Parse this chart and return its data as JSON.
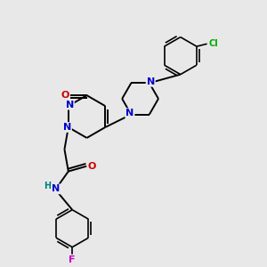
{
  "background_color": "#e8e8e8",
  "atom_colors": {
    "C": "#000000",
    "N": "#0000cc",
    "O": "#cc0000",
    "F": "#cc00cc",
    "Cl": "#00aa00",
    "H": "#008080"
  },
  "figsize": [
    3.0,
    3.0
  ],
  "dpi": 100
}
